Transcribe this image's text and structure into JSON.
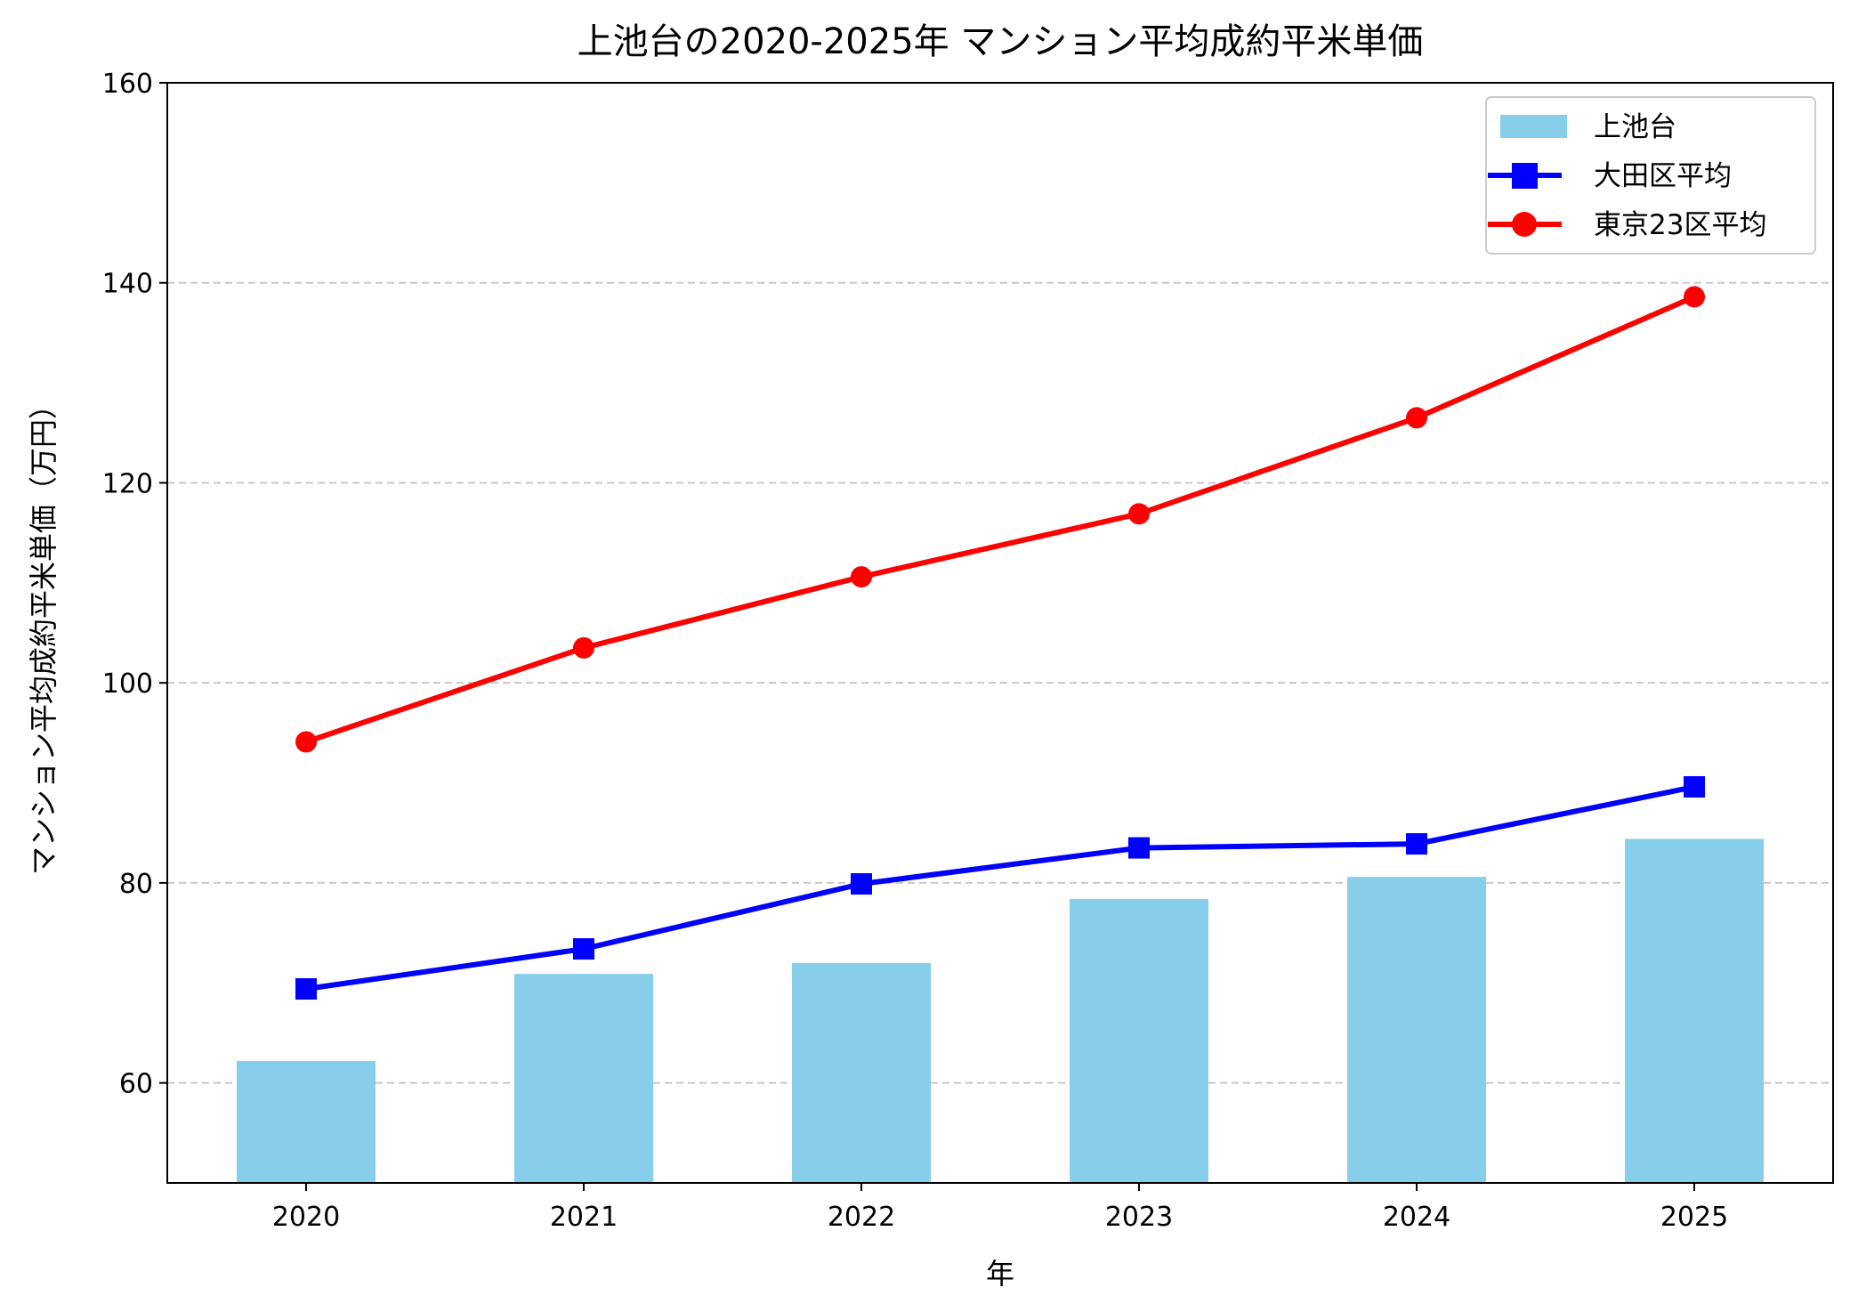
{
  "chart_data": {
    "type": "bar+line",
    "title": "上池台の2020-2025年 マンション平均成約平米単価",
    "xlabel": "年",
    "ylabel": "マンション平均成約平米単価（万円）",
    "categories": [
      "2020",
      "2021",
      "2022",
      "2023",
      "2024",
      "2025"
    ],
    "ylim": [
      50,
      160
    ],
    "yticks": [
      60,
      80,
      100,
      120,
      140,
      160
    ],
    "grid": "y-dashed",
    "legend_position": "top-right",
    "series": [
      {
        "name": "上池台",
        "kind": "bar",
        "color": "#87CEEB",
        "values": [
          62.2,
          70.9,
          72.0,
          78.4,
          80.6,
          84.4
        ]
      },
      {
        "name": "大田区平均",
        "kind": "line",
        "marker": "square",
        "color": "#0000FF",
        "values": [
          69.4,
          73.4,
          79.9,
          83.5,
          83.9,
          89.6
        ]
      },
      {
        "name": "東京23区平均",
        "kind": "line",
        "marker": "circle",
        "color": "#FF0000",
        "values": [
          94.1,
          103.5,
          110.6,
          116.9,
          126.5,
          138.6
        ]
      }
    ]
  }
}
